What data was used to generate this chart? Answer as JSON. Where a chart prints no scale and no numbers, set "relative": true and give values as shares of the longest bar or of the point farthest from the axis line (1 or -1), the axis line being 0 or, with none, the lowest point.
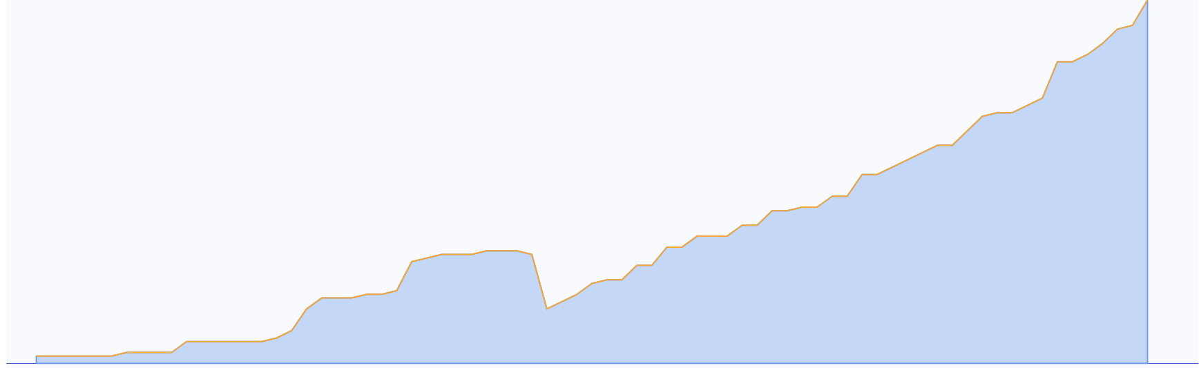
{
  "chart_data": {
    "type": "area",
    "relative": true,
    "categories": [
      null,
      null,
      null,
      null,
      null,
      null,
      null,
      null,
      null,
      null,
      null,
      null,
      null,
      null,
      null,
      null,
      null,
      null,
      null,
      null,
      null,
      null,
      null,
      null,
      null,
      null,
      null,
      null,
      null,
      null,
      null,
      null,
      null,
      null,
      null,
      null,
      null,
      null,
      null,
      null,
      null,
      null,
      null,
      null,
      null,
      null,
      null,
      null,
      null,
      null,
      null,
      null,
      null,
      null,
      null,
      null,
      null,
      null,
      null,
      null,
      null,
      null,
      null,
      null,
      null,
      null,
      null,
      null,
      null,
      null,
      null,
      null,
      null,
      null,
      null
    ],
    "series": [
      {
        "color": "#6f9be8",
        "values": [
          0.02,
          0.02,
          0.02,
          0.02,
          0.02,
          0.02,
          0.03,
          0.03,
          0.03,
          0.03,
          0.06,
          0.06,
          0.06,
          0.06,
          0.06,
          0.06,
          0.07,
          0.09,
          0.15,
          0.18,
          0.18,
          0.18,
          0.19,
          0.19,
          0.2,
          0.28,
          0.29,
          0.3,
          0.3,
          0.3,
          0.31,
          0.31,
          0.31,
          0.3,
          0.15,
          0.17,
          0.19,
          0.22,
          0.23,
          0.23,
          0.27,
          0.27,
          0.32,
          0.32,
          0.35,
          0.35,
          0.35,
          0.38,
          0.38,
          0.42,
          0.42,
          0.43,
          0.43,
          0.46,
          0.46,
          0.52,
          0.52,
          0.54,
          0.56,
          0.58,
          0.6,
          0.6,
          0.64,
          0.68,
          0.69,
          0.69,
          0.71,
          0.73,
          0.83,
          0.83,
          0.85,
          0.88,
          0.92,
          0.93,
          1
        ]
      },
      {
        "type": "line",
        "color": "#f5a83a",
        "values": [
          0.02,
          0.02,
          0.02,
          0.02,
          0.02,
          0.02,
          0.03,
          0.03,
          0.03,
          0.03,
          0.06,
          0.06,
          0.06,
          0.06,
          0.06,
          0.06,
          0.07,
          0.09,
          0.15,
          0.18,
          0.18,
          0.18,
          0.19,
          0.19,
          0.2,
          0.28,
          0.29,
          0.3,
          0.3,
          0.3,
          0.31,
          0.31,
          0.31,
          0.3,
          0.15,
          0.17,
          0.19,
          0.22,
          0.23,
          0.23,
          0.27,
          0.27,
          0.32,
          0.32,
          0.35,
          0.35,
          0.35,
          0.38,
          0.38,
          0.42,
          0.42,
          0.43,
          0.43,
          0.46,
          0.46,
          0.52,
          0.52,
          0.54,
          0.56,
          0.58,
          0.6,
          0.6,
          0.64,
          0.68,
          0.69,
          0.69,
          0.71,
          0.73,
          0.83,
          0.83,
          0.85,
          0.88,
          0.92,
          0.93,
          1
        ]
      }
    ]
  }
}
